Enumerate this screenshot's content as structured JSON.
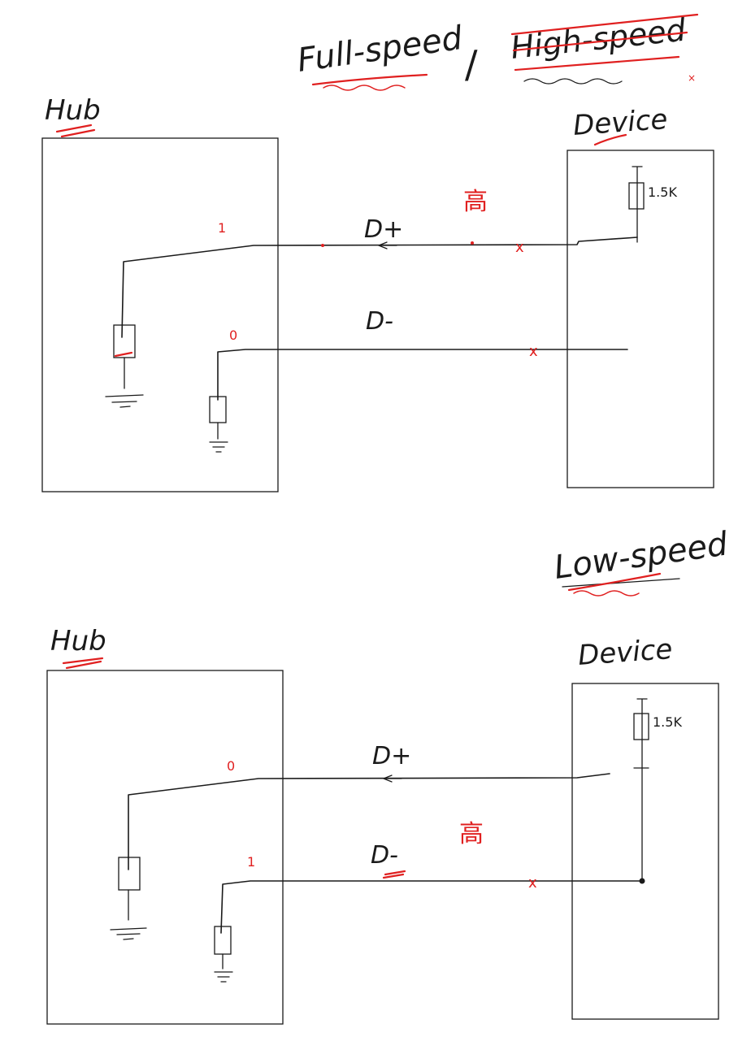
{
  "title": {
    "full_speed": "Full-speed",
    "separator": "/",
    "high_speed_struck": "High-speed"
  },
  "top_diagram": {
    "hub_label": "Hub",
    "device_label": "Device",
    "dplus_label": "D+",
    "dminus_label": "D-",
    "dplus_state": "1",
    "dminus_state": "0",
    "high_note": "高",
    "resistor_value": "1.5K",
    "cross_mark": "x"
  },
  "bottom_diagram": {
    "speed_label": "Low-speed",
    "hub_label": "Hub",
    "device_label": "Device",
    "dplus_label": "D+",
    "dminus_label": "D-",
    "dplus_state": "0",
    "dminus_state": "1",
    "high_note": "高",
    "resistor_value": "1.5K",
    "cross_mark": "x"
  },
  "colors": {
    "ink": "#1a1a1a",
    "annotation": "#e02020",
    "background": "#ffffff"
  }
}
